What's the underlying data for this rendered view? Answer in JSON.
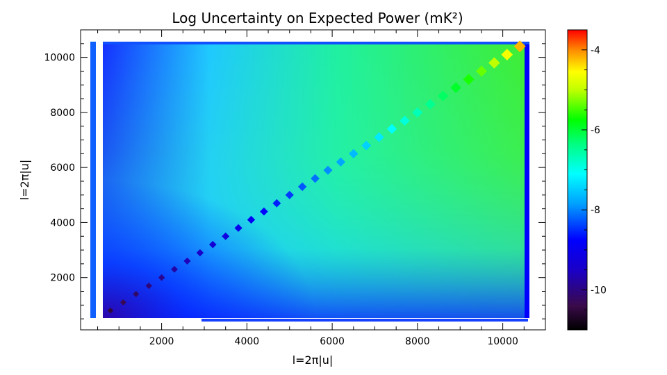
{
  "chart_data": {
    "type": "heatmap",
    "title": "Log Uncertainty on Expected Power (mK²)",
    "xlabel": "l=2π|u|",
    "ylabel": "l=2π|u|",
    "xlim": [
      100,
      11000
    ],
    "ylim": [
      100,
      11000
    ],
    "x_ticks": [
      2000,
      4000,
      6000,
      8000,
      10000
    ],
    "y_ticks": [
      2000,
      4000,
      6000,
      8000,
      10000
    ],
    "colorbar": {
      "range": [
        -11,
        -3.5
      ],
      "ticks": [
        -4,
        -6,
        -8,
        -10
      ],
      "colormap": "rainbow"
    },
    "grid": false,
    "description_values": {
      "diagonal_min": -10.5,
      "diagonal_max": -4.2,
      "offdiag_low_corner": -9.5,
      "offdiag_high_corner": -6.3
    }
  },
  "tick_labels": {
    "x": [
      "2000",
      "4000",
      "6000",
      "8000",
      "10000"
    ],
    "y": [
      "2000",
      "4000",
      "6000",
      "8000",
      "10000"
    ],
    "cb": [
      "-4",
      "-6",
      "-8",
      "-10"
    ]
  }
}
